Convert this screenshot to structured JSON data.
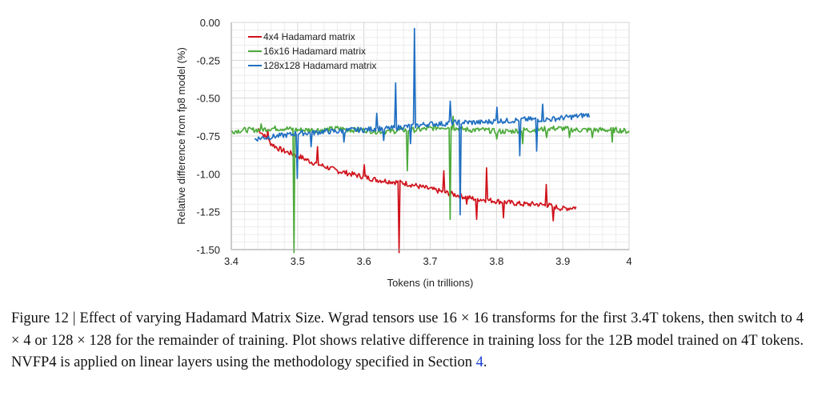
{
  "chart_data": {
    "type": "line",
    "xlabel": "Tokens (in trillions)",
    "ylabel": "Relative difference from fp8 model (%)",
    "xlim": [
      3.4,
      4.0
    ],
    "ylim": [
      -1.5,
      0.0
    ],
    "xticks": [
      "3.4",
      "3.5",
      "3.6",
      "3.7",
      "3.8",
      "3.9",
      "4"
    ],
    "yticks": [
      "0.00",
      "-0.25",
      "-0.50",
      "-0.75",
      "-1.00",
      "-1.25",
      "-1.50"
    ],
    "grid": true,
    "legend_position": "top-left",
    "series": [
      {
        "name": "4x4 Hadamard matrix",
        "color": "#d0121b",
        "x": [
          3.44,
          3.45,
          3.46,
          3.47,
          3.48,
          3.5,
          3.52,
          3.54,
          3.56,
          3.58,
          3.6,
          3.62,
          3.64,
          3.66,
          3.68,
          3.7,
          3.72,
          3.74,
          3.76,
          3.78,
          3.8,
          3.82,
          3.84,
          3.86,
          3.88,
          3.9,
          3.92
        ],
        "y": [
          -0.7,
          -0.75,
          -0.8,
          -0.83,
          -0.85,
          -0.88,
          -0.92,
          -0.95,
          -0.98,
          -1.0,
          -1.02,
          -1.04,
          -1.05,
          -1.06,
          -1.08,
          -1.1,
          -1.12,
          -1.14,
          -1.16,
          -1.17,
          -1.18,
          -1.19,
          -1.2,
          -1.2,
          -1.21,
          -1.23,
          -1.22
        ],
        "spikes": [
          [
            3.653,
            -1.52
          ],
          [
            3.77,
            -1.3
          ],
          [
            3.81,
            -1.29
          ],
          [
            3.885,
            -1.31
          ],
          [
            3.53,
            -0.82
          ],
          [
            3.6,
            -0.94
          ],
          [
            3.72,
            -0.98
          ],
          [
            3.755,
            -1.2
          ],
          [
            3.785,
            -0.96
          ],
          [
            3.875,
            -1.07
          ],
          [
            3.455,
            -0.71
          ]
        ]
      },
      {
        "name": "16x16 Hadamard matrix",
        "color": "#4caa3a",
        "x": [
          3.4,
          3.42,
          3.44,
          3.46,
          3.48,
          3.5,
          3.52,
          3.54,
          3.56,
          3.58,
          3.6,
          3.62,
          3.64,
          3.66,
          3.68,
          3.7,
          3.72,
          3.74,
          3.76,
          3.78,
          3.8,
          3.82,
          3.84,
          3.86,
          3.88,
          3.9,
          3.92,
          3.94,
          3.96,
          3.98,
          4.0
        ],
        "y": [
          -0.72,
          -0.71,
          -0.71,
          -0.7,
          -0.7,
          -0.71,
          -0.71,
          -0.71,
          -0.7,
          -0.71,
          -0.71,
          -0.72,
          -0.72,
          -0.71,
          -0.71,
          -0.7,
          -0.69,
          -0.7,
          -0.71,
          -0.71,
          -0.72,
          -0.72,
          -0.71,
          -0.71,
          -0.7,
          -0.7,
          -0.71,
          -0.71,
          -0.71,
          -0.71,
          -0.72
        ],
        "spikes": [
          [
            3.495,
            -1.52
          ],
          [
            3.665,
            -0.98
          ],
          [
            3.73,
            -1.3
          ],
          [
            3.735,
            -0.62
          ],
          [
            3.8,
            -0.77
          ],
          [
            3.84,
            -0.8
          ],
          [
            3.875,
            -0.76
          ],
          [
            3.91,
            -0.76
          ],
          [
            3.945,
            -0.76
          ],
          [
            3.975,
            -0.79
          ],
          [
            3.445,
            -0.67
          ]
        ]
      },
      {
        "name": "128x128 Hadamard matrix",
        "color": "#1f6fc2",
        "x": [
          3.435,
          3.45,
          3.47,
          3.49,
          3.5,
          3.52,
          3.54,
          3.56,
          3.58,
          3.6,
          3.62,
          3.64,
          3.66,
          3.68,
          3.7,
          3.72,
          3.74,
          3.76,
          3.78,
          3.8,
          3.82,
          3.84,
          3.86,
          3.88,
          3.9,
          3.92,
          3.94
        ],
        "y": [
          -0.77,
          -0.76,
          -0.75,
          -0.74,
          -0.73,
          -0.73,
          -0.72,
          -0.72,
          -0.71,
          -0.71,
          -0.7,
          -0.7,
          -0.69,
          -0.68,
          -0.67,
          -0.67,
          -0.66,
          -0.66,
          -0.66,
          -0.65,
          -0.65,
          -0.64,
          -0.64,
          -0.64,
          -0.63,
          -0.62,
          -0.61
        ],
        "spikes": [
          [
            3.676,
            -0.04
          ],
          [
            3.648,
            -0.4
          ],
          [
            3.745,
            -1.27
          ],
          [
            3.5,
            -1.03
          ],
          [
            3.52,
            -0.82
          ],
          [
            3.57,
            -0.79
          ],
          [
            3.63,
            -0.78
          ],
          [
            3.67,
            -0.8
          ],
          [
            3.835,
            -0.88
          ],
          [
            3.86,
            -0.85
          ],
          [
            3.73,
            -0.52
          ],
          [
            3.87,
            -0.54
          ],
          [
            3.8,
            -0.56
          ],
          [
            3.62,
            -0.6
          ]
        ]
      }
    ]
  },
  "caption": {
    "text": "Figure 12 | Effect of varying Hadamard Matrix Size. Wgrad tensors use 16 × 16 transforms for the first 3.4T tokens, then switch to 4 × 4 or 128 × 128 for the remainder of training. Plot shows relative difference in training loss for the 12B model trained on 4T tokens. NVFP4 is applied on linear layers using the methodology specified in Section ",
    "ref": "4",
    "end": "."
  }
}
